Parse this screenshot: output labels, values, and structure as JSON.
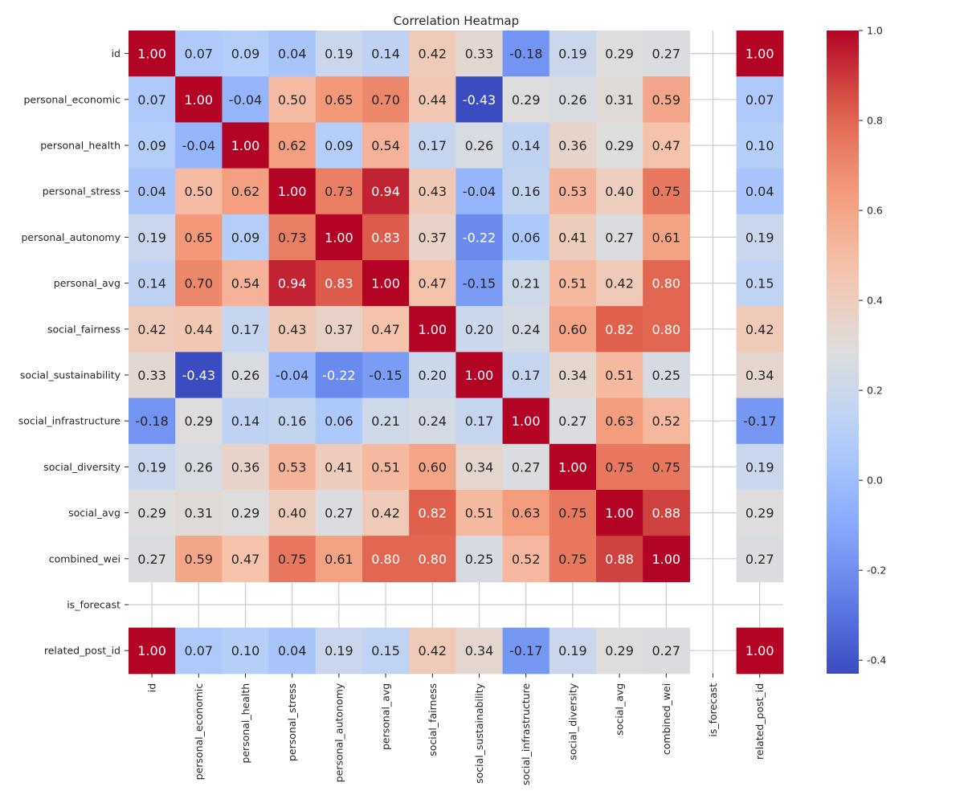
{
  "chart_data": {
    "type": "heatmap",
    "title": "Correlation Heatmap",
    "xlabel": "",
    "ylabel": "",
    "colormap": "coolwarm",
    "vmin": -0.43,
    "vmax": 1.0,
    "labels": [
      "id",
      "personal_economic",
      "personal_health",
      "personal_stress",
      "personal_autonomy",
      "personal_avg",
      "social_fairness",
      "social_sustainability",
      "social_infrastructure",
      "social_diversity",
      "social_avg",
      "combined_wei",
      "is_forecast",
      "related_post_id"
    ],
    "values": [
      [
        1.0,
        0.07,
        0.09,
        0.04,
        0.19,
        0.14,
        0.42,
        0.33,
        -0.18,
        0.19,
        0.29,
        0.27,
        null,
        1.0
      ],
      [
        0.07,
        1.0,
        -0.04,
        0.5,
        0.65,
        0.7,
        0.44,
        -0.43,
        0.29,
        0.26,
        0.31,
        0.59,
        null,
        0.07
      ],
      [
        0.09,
        -0.04,
        1.0,
        0.62,
        0.09,
        0.54,
        0.17,
        0.26,
        0.14,
        0.36,
        0.29,
        0.47,
        null,
        0.1
      ],
      [
        0.04,
        0.5,
        0.62,
        1.0,
        0.73,
        0.94,
        0.43,
        -0.04,
        0.16,
        0.53,
        0.4,
        0.75,
        null,
        0.04
      ],
      [
        0.19,
        0.65,
        0.09,
        0.73,
        1.0,
        0.83,
        0.37,
        -0.22,
        0.06,
        0.41,
        0.27,
        0.61,
        null,
        0.19
      ],
      [
        0.14,
        0.7,
        0.54,
        0.94,
        0.83,
        1.0,
        0.47,
        -0.15,
        0.21,
        0.51,
        0.42,
        0.8,
        null,
        0.15
      ],
      [
        0.42,
        0.44,
        0.17,
        0.43,
        0.37,
        0.47,
        1.0,
        0.2,
        0.24,
        0.6,
        0.82,
        0.8,
        null,
        0.42
      ],
      [
        0.33,
        -0.43,
        0.26,
        -0.04,
        -0.22,
        -0.15,
        0.2,
        1.0,
        0.17,
        0.34,
        0.51,
        0.25,
        null,
        0.34
      ],
      [
        -0.18,
        0.29,
        0.14,
        0.16,
        0.06,
        0.21,
        0.24,
        0.17,
        1.0,
        0.27,
        0.63,
        0.52,
        null,
        -0.17
      ],
      [
        0.19,
        0.26,
        0.36,
        0.53,
        0.41,
        0.51,
        0.6,
        0.34,
        0.27,
        1.0,
        0.75,
        0.75,
        null,
        0.19
      ],
      [
        0.29,
        0.31,
        0.29,
        0.4,
        0.27,
        0.42,
        0.82,
        0.51,
        0.63,
        0.75,
        1.0,
        0.88,
        null,
        0.29
      ],
      [
        0.27,
        0.59,
        0.47,
        0.75,
        0.61,
        0.8,
        0.8,
        0.25,
        0.52,
        0.75,
        0.88,
        1.0,
        null,
        0.27
      ],
      [
        null,
        null,
        null,
        null,
        null,
        null,
        null,
        null,
        null,
        null,
        null,
        null,
        null,
        null
      ],
      [
        1.0,
        0.07,
        0.1,
        0.04,
        0.19,
        0.15,
        0.42,
        0.34,
        -0.17,
        0.19,
        0.29,
        0.27,
        null,
        1.0
      ]
    ],
    "colorbar_ticks": [
      1.0,
      0.8,
      0.6,
      0.4,
      0.2,
      0.0,
      -0.2,
      -0.4
    ],
    "colorbar_tick_labels": [
      "1.0",
      "0.8",
      "0.6",
      "0.4",
      "0.2",
      "0.0",
      "-0.2",
      "-0.4"
    ],
    "grid": true
  }
}
